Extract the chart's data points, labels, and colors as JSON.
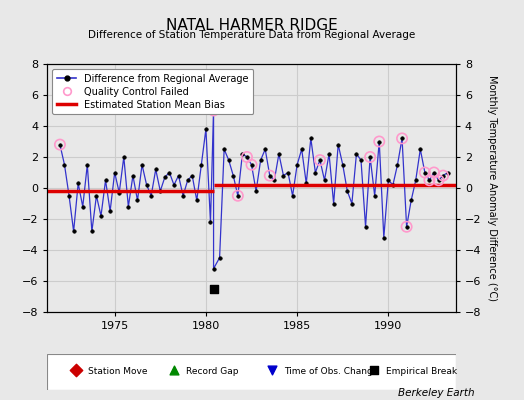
{
  "title": "NATAL HARMER RIDGE",
  "subtitle": "Difference of Station Temperature Data from Regional Average",
  "ylabel": "Monthly Temperature Anomaly Difference (°C)",
  "bg_color": "#e8e8e8",
  "plot_bg_color": "#e8e8e8",
  "ylim": [
    -8,
    8
  ],
  "xlim": [
    1971.3,
    1993.7
  ],
  "xticks": [
    1975,
    1980,
    1985,
    1990
  ],
  "yticks": [
    -8,
    -6,
    -4,
    -2,
    0,
    2,
    4,
    6,
    8
  ],
  "bias_line_segment1": {
    "x": [
      1971.3,
      1980.42
    ],
    "y": [
      -0.18,
      -0.18
    ]
  },
  "bias_line_segment2": {
    "x": [
      1980.42,
      1993.7
    ],
    "y": [
      0.18,
      0.18
    ]
  },
  "empirical_break_x": 1980.42,
  "empirical_break_y": -6.5,
  "data_x": [
    1972.0,
    1972.25,
    1972.5,
    1972.75,
    1973.0,
    1973.25,
    1973.5,
    1973.75,
    1974.0,
    1974.25,
    1974.5,
    1974.75,
    1975.0,
    1975.25,
    1975.5,
    1975.75,
    1976.0,
    1976.25,
    1976.5,
    1976.75,
    1977.0,
    1977.25,
    1977.5,
    1977.75,
    1978.0,
    1978.25,
    1978.5,
    1978.75,
    1979.0,
    1979.25,
    1979.5,
    1979.75,
    1980.0,
    1980.25,
    1980.42,
    1980.42,
    1980.75,
    1981.0,
    1981.25,
    1981.5,
    1981.75,
    1982.0,
    1982.25,
    1982.5,
    1982.75,
    1983.0,
    1983.25,
    1983.5,
    1983.75,
    1984.0,
    1984.25,
    1984.5,
    1984.75,
    1985.0,
    1985.25,
    1985.5,
    1985.75,
    1986.0,
    1986.25,
    1986.5,
    1986.75,
    1987.0,
    1987.25,
    1987.5,
    1987.75,
    1988.0,
    1988.25,
    1988.5,
    1988.75,
    1989.0,
    1989.25,
    1989.5,
    1989.75,
    1990.0,
    1990.25,
    1990.5,
    1990.75,
    1991.0,
    1991.25,
    1991.5,
    1991.75,
    1992.0,
    1992.25,
    1992.5,
    1992.75,
    1993.0,
    1993.25
  ],
  "data_y": [
    2.8,
    1.5,
    -0.5,
    -2.8,
    0.3,
    -1.2,
    1.5,
    -2.8,
    -0.5,
    -1.8,
    0.5,
    -1.5,
    1.0,
    -0.3,
    2.0,
    -1.2,
    0.8,
    -0.8,
    1.5,
    0.2,
    -0.5,
    1.2,
    -0.2,
    0.7,
    1.0,
    0.2,
    0.8,
    -0.5,
    0.5,
    0.8,
    -0.8,
    1.5,
    3.8,
    -2.2,
    5.0,
    -5.2,
    -4.5,
    2.5,
    1.8,
    0.8,
    -0.5,
    2.2,
    2.0,
    1.5,
    -0.2,
    1.8,
    2.5,
    0.8,
    0.5,
    2.2,
    0.8,
    1.0,
    -0.5,
    1.5,
    2.5,
    0.3,
    3.2,
    1.0,
    1.8,
    0.5,
    2.2,
    -1.0,
    2.8,
    1.5,
    -0.2,
    -1.0,
    2.2,
    1.8,
    -2.5,
    2.0,
    -0.5,
    3.0,
    -3.2,
    0.5,
    0.2,
    1.5,
    3.2,
    -2.5,
    -0.8,
    0.5,
    2.5,
    1.0,
    0.5,
    1.0,
    0.5,
    0.8,
    1.0
  ],
  "qc_failed_indices": [
    0,
    34,
    40,
    42,
    43,
    47,
    58,
    69,
    71,
    76,
    77,
    81,
    82,
    83,
    84,
    85
  ],
  "line_color": "#3333cc",
  "marker_color": "#000000",
  "qc_color": "#ff99cc",
  "bias_color": "#dd0000",
  "grid_color": "#cccccc",
  "legend_bg": "#ffffff",
  "bottom_legend_items": [
    {
      "marker": "D",
      "color": "#cc0000",
      "label": "Station Move"
    },
    {
      "marker": "^",
      "color": "#008800",
      "label": "Record Gap"
    },
    {
      "marker": "v",
      "color": "#0000cc",
      "label": "Time of Obs. Change"
    },
    {
      "marker": "s",
      "color": "#000000",
      "label": "Empirical Break"
    }
  ]
}
